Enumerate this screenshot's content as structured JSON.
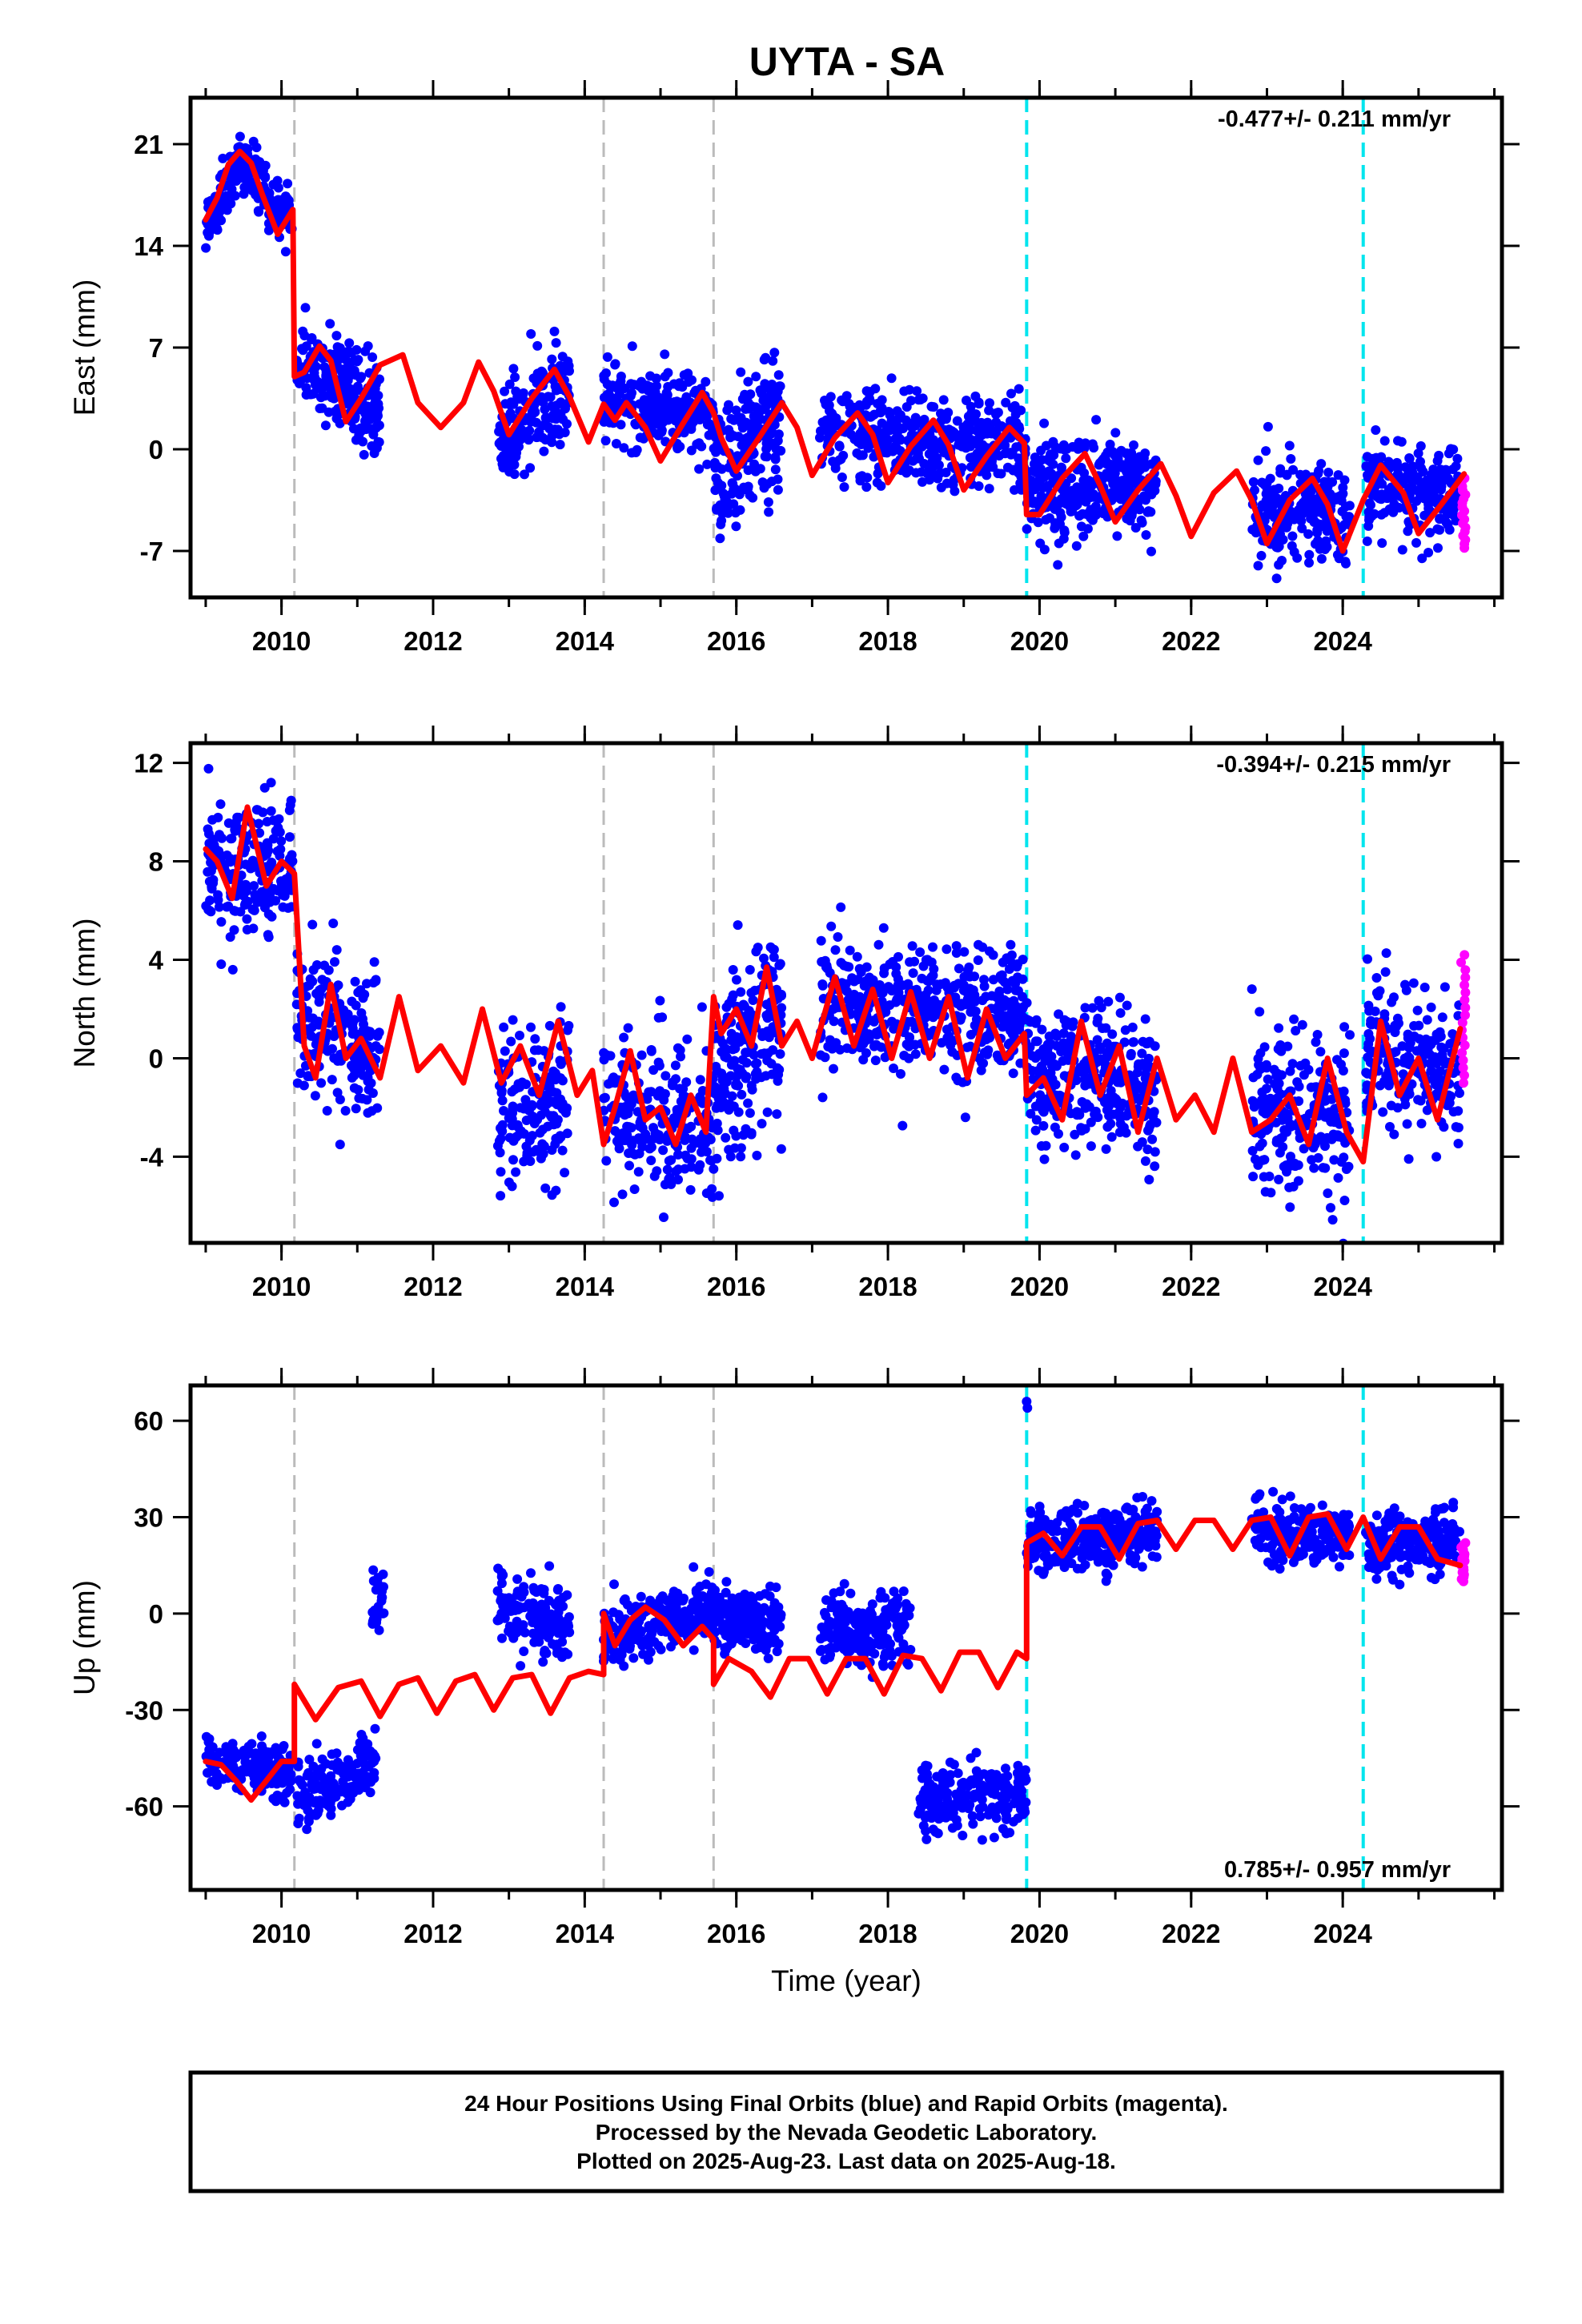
{
  "chart_data": {
    "type": "scatter",
    "title": "UYTA - SA",
    "xlabel": "Time (year)",
    "x_ticks": [
      2010,
      2012,
      2014,
      2016,
      2018,
      2020,
      2022,
      2024
    ],
    "xlim": [
      2008.8,
      2026.1
    ],
    "colors": {
      "final_orbits": "#0000ff",
      "rapid_orbits": "#ff00ff",
      "model": "#ff0000",
      "equipment_change": "#bbbbbb",
      "earthquake": "#00e5ee"
    },
    "equipment_change_epochs": [
      2010.17,
      2014.25,
      2015.7
    ],
    "earthquake_epochs": [
      2019.83,
      2024.27
    ],
    "panels": [
      {
        "ylabel": "East (mm)",
        "ylim": [
          -10.2,
          24.2
        ],
        "y_ticks": [
          -7,
          0,
          7,
          14,
          21
        ],
        "rate": "-0.477+/- 0.211 mm/yr",
        "rate_position": "top-right",
        "model_x": [
          2009.0,
          2009.15,
          2009.3,
          2009.45,
          2009.6,
          2009.75,
          2009.95,
          2010.15,
          2010.17,
          2010.3,
          2010.5,
          2010.65,
          2010.85,
          2011.05,
          2011.3,
          2011.6,
          2011.8,
          2012.1,
          2012.4,
          2012.6,
          2012.8,
          2013.0,
          2013.3,
          2013.6,
          2013.8,
          2014.05,
          2014.25,
          2014.4,
          2014.55,
          2014.8,
          2015.0,
          2015.3,
          2015.55,
          2015.7,
          2015.8,
          2016.0,
          2016.3,
          2016.6,
          2016.8,
          2017.0,
          2017.3,
          2017.6,
          2017.8,
          2018.0,
          2018.3,
          2018.6,
          2018.8,
          2019.0,
          2019.3,
          2019.6,
          2019.8,
          2019.83,
          2020.0,
          2020.3,
          2020.6,
          2020.8,
          2021.0,
          2021.3,
          2021.6,
          2021.8,
          2022.0,
          2022.3,
          2022.6,
          2022.8,
          2023.0,
          2023.3,
          2023.6,
          2023.8,
          2024.0,
          2024.27,
          2024.5,
          2024.8,
          2025.0,
          2025.3,
          2025.6
        ],
        "model_y": [
          15.8,
          17.3,
          19.6,
          20.5,
          19.7,
          17.5,
          14.8,
          16.5,
          5.0,
          5.3,
          7.1,
          6.1,
          1.9,
          3.5,
          5.8,
          6.5,
          3.2,
          1.5,
          3.2,
          6.0,
          4.0,
          1.0,
          3.5,
          5.5,
          3.6,
          0.5,
          3.1,
          2.0,
          3.2,
          1.5,
          -0.8,
          1.8,
          3.9,
          2.5,
          0.8,
          -1.5,
          0.8,
          3.2,
          1.5,
          -1.8,
          0.8,
          2.5,
          1.0,
          -2.3,
          0.2,
          2.0,
          0.3,
          -2.8,
          -0.5,
          1.5,
          0.4,
          -4.5,
          -4.5,
          -2.0,
          -0.3,
          -2.5,
          -5.0,
          -2.8,
          -1.0,
          -3.2,
          -6.0,
          -3.0,
          -1.5,
          -3.5,
          -6.5,
          -3.5,
          -2.0,
          -3.8,
          -7.0,
          -3.5,
          -1.1,
          -3.0,
          -5.8,
          -3.8,
          -1.7
        ],
        "clusters": [
          {
            "x0": 2009.0,
            "x1": 2009.5,
            "y0": 15.0,
            "y1": 20.0,
            "sd": 1.0,
            "n": 95
          },
          {
            "x0": 2009.5,
            "x1": 2010.15,
            "y0": 19.5,
            "y1": 15.5,
            "sd": 1.1,
            "n": 115
          },
          {
            "x0": 2010.2,
            "x1": 2011.3,
            "y0": 6.5,
            "y1": 2.5,
            "sd": 1.6,
            "n": 210
          },
          {
            "x0": 2012.85,
            "x1": 2013.8,
            "y0": 0.5,
            "y1": 4.5,
            "sd": 1.6,
            "n": 170
          },
          {
            "x0": 2014.25,
            "x1": 2015.7,
            "y0": 3.0,
            "y1": 2.5,
            "sd": 1.4,
            "n": 250
          },
          {
            "x0": 2015.7,
            "x1": 2016.6,
            "y0": -2.0,
            "y1": 2.5,
            "sd": 2.0,
            "n": 200
          },
          {
            "x0": 2017.1,
            "x1": 2019.83,
            "y0": 1.5,
            "y1": 0.0,
            "sd": 1.6,
            "n": 430
          },
          {
            "x0": 2019.83,
            "x1": 2021.55,
            "y0": -3.0,
            "y1": -2.5,
            "sd": 1.6,
            "n": 320
          },
          {
            "x0": 2022.8,
            "x1": 2024.1,
            "y0": -4.0,
            "y1": -4.5,
            "sd": 1.7,
            "n": 230
          },
          {
            "x0": 2024.3,
            "x1": 2025.55,
            "y0": -2.5,
            "y1": -3.0,
            "sd": 1.5,
            "n": 210
          }
        ],
        "rapid": {
          "x0": 2025.56,
          "x1": 2025.62,
          "y0": -2.0,
          "y1": -6.8,
          "n": 18
        }
      },
      {
        "ylabel": "North (mm)",
        "ylim": [
          -7.5,
          12.8
        ],
        "y_ticks": [
          -4,
          0,
          4,
          8,
          12
        ],
        "rate": "-0.394+/- 0.215 mm/yr",
        "rate_position": "top-right",
        "model_x": [
          2009.0,
          2009.15,
          2009.35,
          2009.55,
          2009.8,
          2010.0,
          2010.17,
          2010.3,
          2010.45,
          2010.65,
          2010.85,
          2011.05,
          2011.3,
          2011.55,
          2011.8,
          2012.1,
          2012.4,
          2012.65,
          2012.9,
          2013.15,
          2013.4,
          2013.65,
          2013.9,
          2014.1,
          2014.25,
          2014.4,
          2014.6,
          2014.8,
          2015.0,
          2015.2,
          2015.4,
          2015.6,
          2015.7,
          2015.8,
          2016.0,
          2016.2,
          2016.4,
          2016.6,
          2016.8,
          2017.0,
          2017.3,
          2017.55,
          2017.8,
          2018.05,
          2018.3,
          2018.55,
          2018.8,
          2019.05,
          2019.3,
          2019.55,
          2019.8,
          2019.83,
          2020.05,
          2020.3,
          2020.55,
          2020.8,
          2021.05,
          2021.3,
          2021.55,
          2021.8,
          2022.05,
          2022.3,
          2022.55,
          2022.8,
          2023.05,
          2023.3,
          2023.55,
          2023.8,
          2024.05,
          2024.27,
          2024.5,
          2024.75,
          2025.0,
          2025.25,
          2025.55
        ],
        "model_y": [
          8.5,
          8.0,
          6.5,
          10.2,
          7.0,
          8.0,
          7.5,
          0.5,
          -0.8,
          3.0,
          0.0,
          0.8,
          -0.8,
          2.5,
          -0.5,
          0.5,
          -1.0,
          2.0,
          -1.0,
          0.5,
          -1.5,
          1.5,
          -1.5,
          -0.5,
          -3.5,
          -2.0,
          0.3,
          -2.5,
          -2.0,
          -3.5,
          -1.5,
          -3.0,
          2.5,
          1.0,
          2.0,
          0.5,
          3.7,
          0.5,
          1.5,
          0.0,
          3.3,
          0.5,
          2.8,
          0.0,
          2.7,
          0.0,
          2.5,
          -0.8,
          2.0,
          0.0,
          1.0,
          -1.5,
          -0.8,
          -2.5,
          1.5,
          -1.5,
          0.5,
          -3.0,
          0.0,
          -2.5,
          -1.5,
          -3.0,
          0.0,
          -3.0,
          -2.5,
          -1.5,
          -3.5,
          0.0,
          -3.0,
          -4.2,
          1.5,
          -1.5,
          0.0,
          -2.5,
          1.2
        ],
        "clusters": [
          {
            "x0": 2009.0,
            "x1": 2010.15,
            "y0": 7.5,
            "y1": 8.0,
            "sd": 1.3,
            "n": 200
          },
          {
            "x0": 2010.2,
            "x1": 2011.3,
            "y0": 2.0,
            "y1": 0.0,
            "sd": 1.5,
            "n": 200
          },
          {
            "x0": 2012.85,
            "x1": 2013.8,
            "y0": -2.5,
            "y1": -1.5,
            "sd": 1.6,
            "n": 160
          },
          {
            "x0": 2014.25,
            "x1": 2015.7,
            "y0": -2.0,
            "y1": -2.5,
            "sd": 1.5,
            "n": 240
          },
          {
            "x0": 2015.7,
            "x1": 2016.6,
            "y0": -1.0,
            "y1": 2.0,
            "sd": 2.0,
            "n": 200
          },
          {
            "x0": 2017.1,
            "x1": 2019.83,
            "y0": 2.0,
            "y1": 2.0,
            "sd": 1.4,
            "n": 430
          },
          {
            "x0": 2019.83,
            "x1": 2021.55,
            "y0": -0.5,
            "y1": -1.0,
            "sd": 1.5,
            "n": 320
          },
          {
            "x0": 2022.8,
            "x1": 2024.1,
            "y0": -2.0,
            "y1": -2.5,
            "sd": 1.6,
            "n": 230
          },
          {
            "x0": 2024.3,
            "x1": 2025.55,
            "y0": 0.5,
            "y1": -1.0,
            "sd": 1.5,
            "n": 210
          }
        ],
        "rapid": {
          "x0": 2025.56,
          "x1": 2025.62,
          "y0": -1.0,
          "y1": 4.2,
          "n": 18
        }
      },
      {
        "ylabel": "Up (mm)",
        "ylim": [
          -86,
          71
        ],
        "y_ticks": [
          -60,
          -30,
          0,
          30,
          60
        ],
        "rate": "0.785+/- 0.957 mm/yr",
        "rate_position": "bottom-right",
        "model_x": [
          2009.0,
          2009.2,
          2009.4,
          2009.6,
          2009.8,
          2010.0,
          2010.17,
          2010.17,
          2010.45,
          2010.75,
          2011.05,
          2011.3,
          2011.55,
          2011.8,
          2012.05,
          2012.3,
          2012.55,
          2012.8,
          2013.05,
          2013.3,
          2013.55,
          2013.8,
          2014.05,
          2014.25,
          2014.25,
          2014.4,
          2014.6,
          2014.8,
          2015.05,
          2015.3,
          2015.55,
          2015.7,
          2015.7,
          2015.9,
          2016.2,
          2016.45,
          2016.7,
          2016.95,
          2017.2,
          2017.45,
          2017.7,
          2017.95,
          2018.2,
          2018.45,
          2018.7,
          2018.95,
          2019.2,
          2019.45,
          2019.7,
          2019.83,
          2019.83,
          2020.05,
          2020.3,
          2020.55,
          2020.8,
          2021.05,
          2021.3,
          2021.55,
          2021.8,
          2022.05,
          2022.3,
          2022.55,
          2022.8,
          2023.05,
          2023.3,
          2023.55,
          2023.8,
          2024.05,
          2024.27,
          2024.5,
          2024.75,
          2025.0,
          2025.25,
          2025.55
        ],
        "model_y": [
          -46,
          -47,
          -52,
          -58,
          -52,
          -46,
          -46,
          -22,
          -33,
          -23,
          -21,
          -32,
          -22,
          -20,
          -31,
          -21,
          -19,
          -30,
          -20,
          -19,
          -31,
          -20,
          -18,
          -19,
          0,
          -10,
          -2,
          2,
          -2,
          -10,
          -4,
          -8,
          -22,
          -14,
          -18,
          -26,
          -14,
          -14,
          -25,
          -14,
          -14,
          -25,
          -13,
          -14,
          -24,
          -12,
          -12,
          -23,
          -12,
          -14,
          22,
          25,
          18,
          27,
          27,
          17,
          28,
          29,
          20,
          29,
          29,
          20,
          29,
          30,
          18,
          30,
          31,
          20,
          30,
          17,
          27,
          27,
          17,
          15
        ],
        "clusters": [
          {
            "x0": 2009.0,
            "x1": 2010.15,
            "y0": -46,
            "y1": -50,
            "sd": 4.0,
            "n": 180
          },
          {
            "x0": 2010.2,
            "x1": 2011.25,
            "y0": -58,
            "y1": -46,
            "sd": 5.5,
            "n": 160
          },
          {
            "x0": 2011.2,
            "x1": 2011.35,
            "y0": 0,
            "y1": 8,
            "sd": 5.5,
            "n": 25
          },
          {
            "x0": 2012.85,
            "x1": 2013.8,
            "y0": 4,
            "y1": -5,
            "sd": 5.5,
            "n": 160
          },
          {
            "x0": 2014.25,
            "x1": 2015.7,
            "y0": -8,
            "y1": 2,
            "sd": 5.0,
            "n": 240
          },
          {
            "x0": 2015.7,
            "x1": 2016.6,
            "y0": -2,
            "y1": -3,
            "sd": 5.0,
            "n": 160
          },
          {
            "x0": 2017.1,
            "x1": 2018.3,
            "y0": -6,
            "y1": -4,
            "sd": 6.0,
            "n": 200
          },
          {
            "x0": 2018.4,
            "x1": 2019.83,
            "y0": -58,
            "y1": -56,
            "sd": 5.0,
            "n": 220
          },
          {
            "x0": 2019.83,
            "x1": 2021.55,
            "y0": 22,
            "y1": 25,
            "sd": 4.5,
            "n": 320
          },
          {
            "x0": 2022.8,
            "x1": 2024.1,
            "y0": 26,
            "y1": 24,
            "sd": 4.5,
            "n": 230
          },
          {
            "x0": 2024.3,
            "x1": 2025.55,
            "y0": 20,
            "y1": 24,
            "sd": 5.0,
            "n": 210
          }
        ],
        "outliers": [
          {
            "x": 2019.83,
            "y": 66
          },
          {
            "x": 2019.84,
            "y": 64
          }
        ],
        "rapid": {
          "x0": 2025.56,
          "x1": 2025.62,
          "y0": 22,
          "y1": 10,
          "n": 18
        }
      }
    ]
  },
  "footer": {
    "line1": "24 Hour Positions Using Final Orbits (blue) and Rapid Orbits (magenta).",
    "line2": "Processed by the Nevada Geodetic Laboratory.",
    "line3": "Plotted on 2025-Aug-23. Last data on 2025-Aug-18."
  }
}
